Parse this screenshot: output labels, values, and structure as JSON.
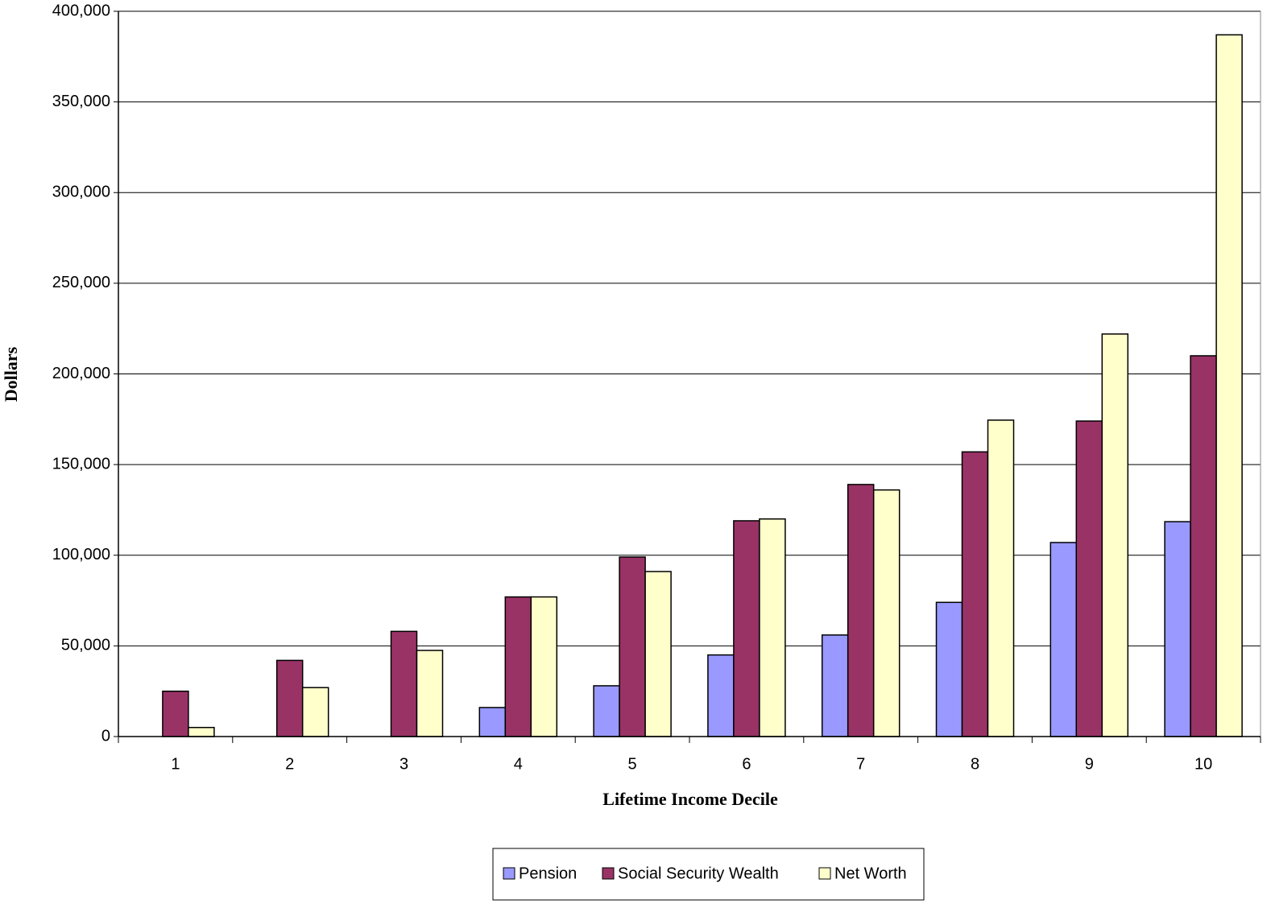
{
  "chart_data": {
    "type": "bar",
    "x_label": "Lifetime Income Decile",
    "y_label": "Dollars",
    "categories": [
      "1",
      "2",
      "3",
      "4",
      "5",
      "6",
      "7",
      "8",
      "9",
      "10"
    ],
    "series": [
      {
        "name": "Pension",
        "color": "#9999ff",
        "values": [
          0,
          0,
          0,
          16000,
          28000,
          45000,
          56000,
          74000,
          107000,
          118500
        ]
      },
      {
        "name": "Social Security Wealth",
        "color": "#993366",
        "values": [
          25000,
          42000,
          58000,
          77000,
          99000,
          119000,
          139000,
          157000,
          174000,
          210000
        ]
      },
      {
        "name": "Net Worth",
        "color": "#ffffcc",
        "values": [
          5000,
          27000,
          47500,
          77000,
          91000,
          120000,
          136000,
          174500,
          222000,
          387000
        ]
      }
    ],
    "ylim": [
      0,
      400000
    ],
    "yticks": [
      0,
      {
        "value": 50000,
        "label": "50,000"
      },
      {
        "value": 100000,
        "label": "100,000"
      },
      {
        "value": 150000,
        "label": "150,000"
      },
      {
        "value": 200000,
        "label": "200,000"
      },
      {
        "value": 250000,
        "label": "250,000"
      },
      {
        "value": 300000,
        "label": "300,000"
      },
      {
        "value": 350000,
        "label": "350,000"
      },
      {
        "value": 400000,
        "label": "400,000"
      }
    ],
    "grid": true,
    "legend": "bottom"
  }
}
